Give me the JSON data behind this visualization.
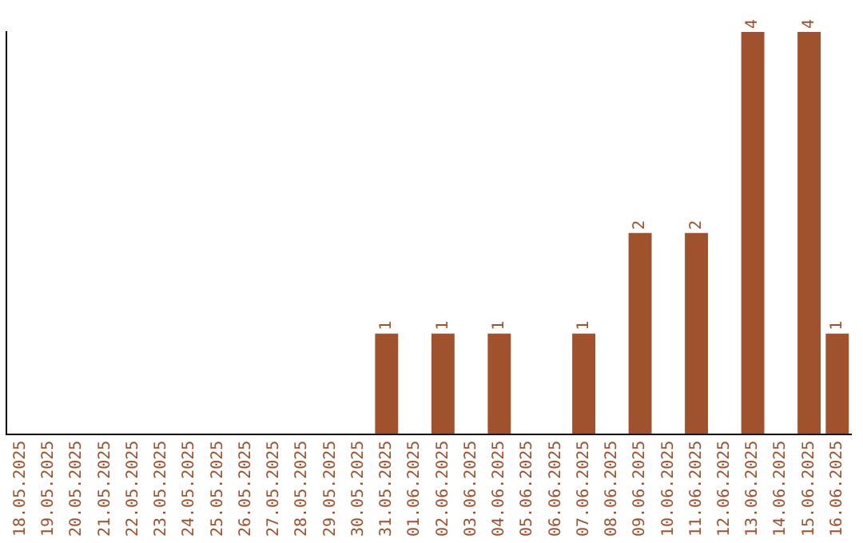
{
  "chart_data": {
    "type": "bar",
    "categories": [
      "18.05.2025",
      "19.05.2025",
      "20.05.2025",
      "21.05.2025",
      "22.05.2025",
      "23.05.2025",
      "24.05.2025",
      "25.05.2025",
      "26.05.2025",
      "27.05.2025",
      "28.05.2025",
      "29.05.2025",
      "30.05.2025",
      "31.05.2025",
      "01.06.2025",
      "02.06.2025",
      "03.06.2025",
      "04.06.2025",
      "05.06.2025",
      "06.06.2025",
      "07.06.2025",
      "08.06.2025",
      "09.06.2025",
      "10.06.2025",
      "11.06.2025",
      "12.06.2025",
      "13.06.2025",
      "14.06.2025",
      "15.06.2025",
      "16.06.2025"
    ],
    "values": [
      null,
      null,
      null,
      null,
      null,
      null,
      null,
      null,
      null,
      null,
      null,
      null,
      null,
      1,
      null,
      1,
      null,
      1,
      null,
      null,
      1,
      null,
      2,
      null,
      2,
      null,
      4,
      null,
      4,
      1
    ],
    "value_labels": [
      null,
      null,
      null,
      null,
      null,
      null,
      null,
      null,
      null,
      null,
      null,
      null,
      null,
      "1",
      null,
      "1",
      null,
      "1",
      null,
      null,
      "1",
      null,
      "2",
      null,
      "2",
      null,
      "4",
      null,
      "4",
      "1"
    ],
    "color": "#a0522d",
    "tick_labels": "x",
    "grid": false,
    "legend": false
  }
}
